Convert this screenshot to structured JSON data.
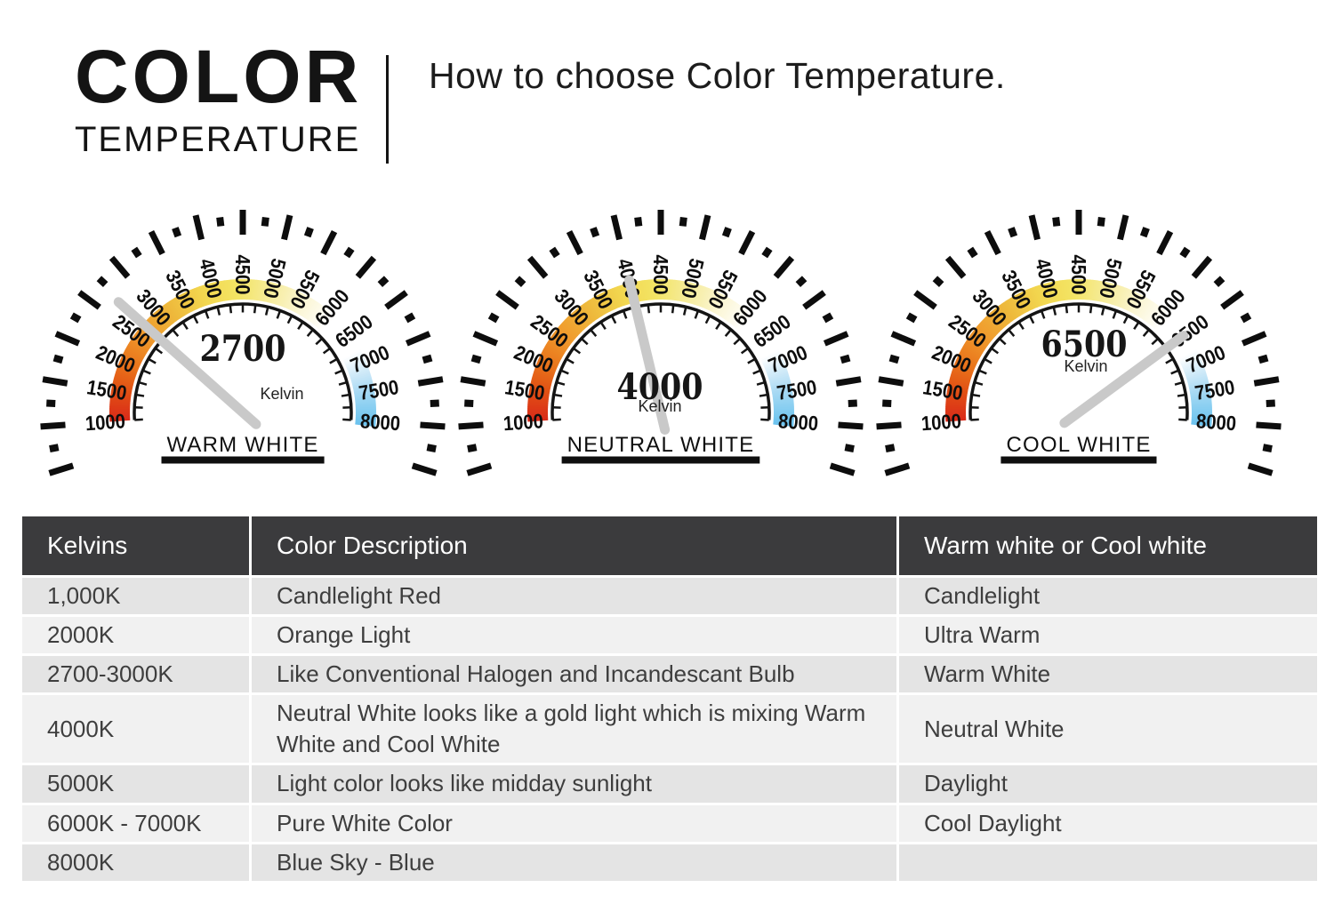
{
  "header": {
    "logo_line1": "COLOR",
    "logo_line2": "TEMPERATURE",
    "title": "How to choose Color Temperature."
  },
  "gauges": {
    "unit_label": "Kelvin",
    "scale": {
      "min": 1000,
      "max": 8000,
      "major_step": 500,
      "minor_step": 250,
      "labels": [
        "1000",
        "1500",
        "2000",
        "2500",
        "3000",
        "3500",
        "4000",
        "4500",
        "5000",
        "5500",
        "6000",
        "6500",
        "7000",
        "7500",
        "8000"
      ]
    },
    "warm_band_stops": [
      [
        1000,
        "#d92a1a"
      ],
      [
        1500,
        "#e14e14"
      ],
      [
        2000,
        "#e9741b"
      ],
      [
        2600,
        "#f09b2d"
      ],
      [
        3200,
        "#eeb93c"
      ],
      [
        3800,
        "#f2d64f"
      ],
      [
        4400,
        "#f3e464"
      ],
      [
        5000,
        "#f6ec9d"
      ],
      [
        5600,
        "#fbf6d6"
      ],
      [
        6150,
        "#ffffff"
      ]
    ],
    "cool_band_stops": [
      [
        6800,
        "#ffffff"
      ],
      [
        7100,
        "#d7edf9"
      ],
      [
        7500,
        "#a5d8f3"
      ],
      [
        7900,
        "#7bcaf0"
      ],
      [
        8080,
        "#69c1ee"
      ]
    ],
    "needle_color": "#c9c9c9",
    "items": [
      {
        "value": "2700",
        "reading": 2700,
        "label": "WARM WHITE"
      },
      {
        "value": "4000",
        "reading": 4000,
        "label": "NEUTRAL WHITE"
      },
      {
        "value": "6500",
        "reading": 6500,
        "label": "COOL WHITE"
      }
    ]
  },
  "table": {
    "columns": [
      "Kelvins",
      "Color Description",
      "Warm white or Cool white"
    ],
    "rows": [
      [
        "1,000K",
        "Candlelight Red",
        "Candlelight"
      ],
      [
        "2000K",
        "Orange Light",
        "Ultra Warm"
      ],
      [
        "2700-3000K",
        "Like Conventional Halogen and Incandescant Bulb",
        "Warm White"
      ],
      [
        "4000K",
        "Neutral White looks like a gold light which is mixing Warm White and Cool White",
        "Neutral White"
      ],
      [
        "5000K",
        "Light color looks like midday sunlight",
        "Daylight"
      ],
      [
        "6000K - 7000K",
        "Pure White Color",
        "Cool Daylight"
      ],
      [
        "8000K",
        "Blue Sky - Blue",
        ""
      ]
    ],
    "header_bg": "#3b3b3d",
    "row_colors": [
      "#e4e4e4",
      "#f1f1f1"
    ],
    "header_text_color": "#ffffff"
  }
}
